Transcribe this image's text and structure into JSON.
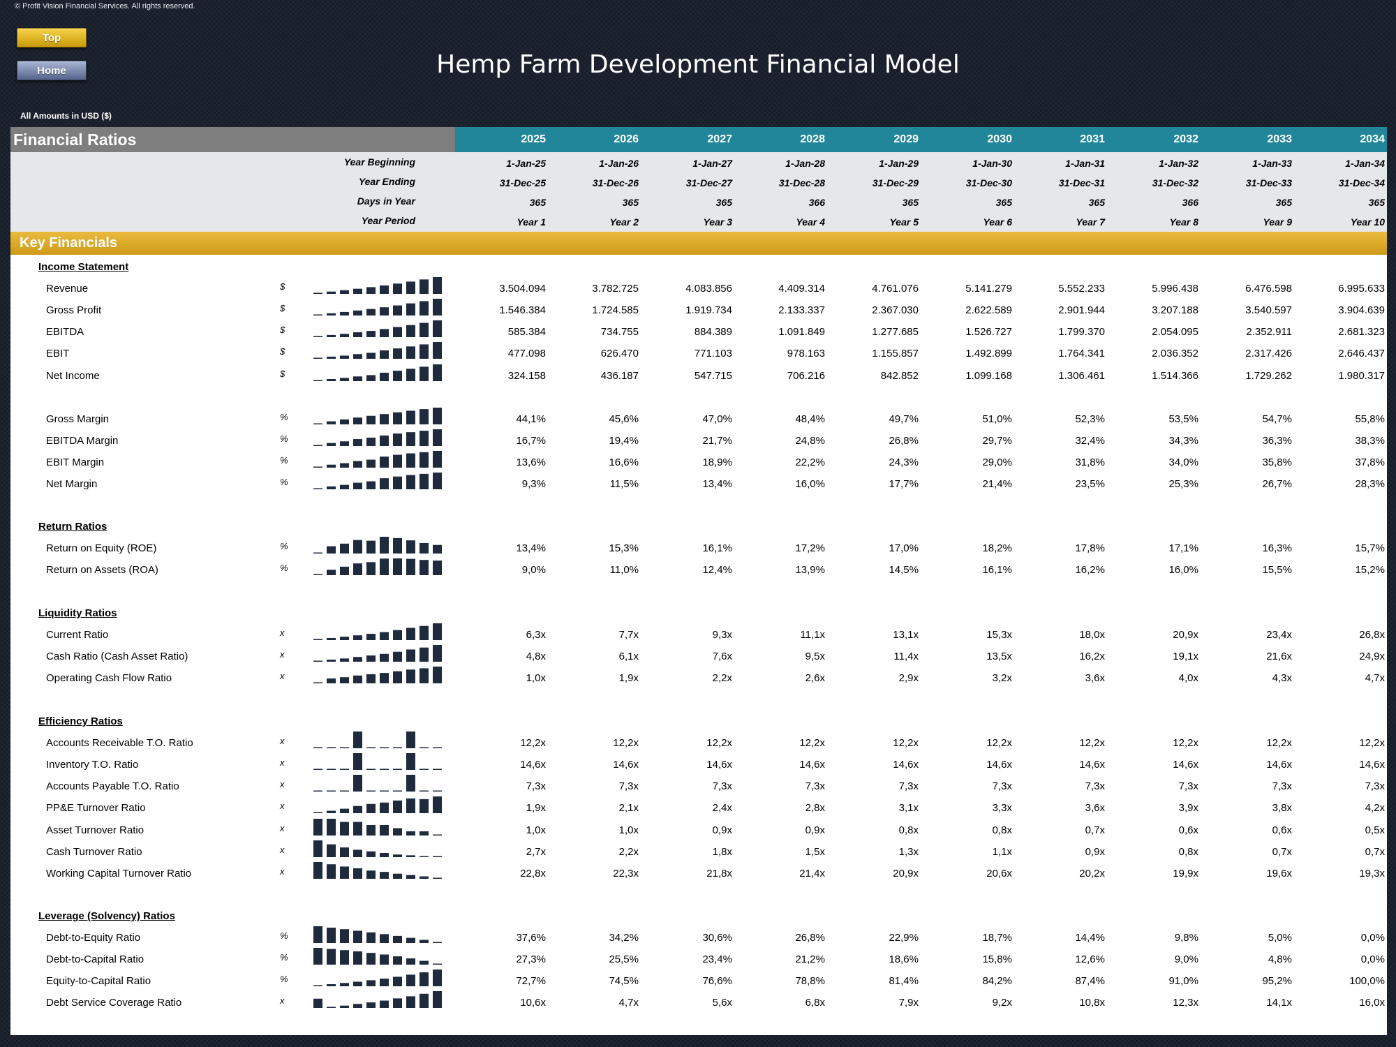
{
  "copyright": "© Profit Vision Financial Services. All rights reserved.",
  "nav": {
    "top_label": "Top",
    "home_label": "Home"
  },
  "title": "Hemp Farm Development Financial Model",
  "amounts_note": "All Amounts in  USD ($)",
  "header": {
    "section_title": "Financial Ratios",
    "years": [
      "2025",
      "2026",
      "2027",
      "2028",
      "2029",
      "2030",
      "2031",
      "2032",
      "2033",
      "2034"
    ]
  },
  "info_rows": [
    {
      "label": "Year Beginning",
      "values": [
        "1-Jan-25",
        "1-Jan-26",
        "1-Jan-27",
        "1-Jan-28",
        "1-Jan-29",
        "1-Jan-30",
        "1-Jan-31",
        "1-Jan-32",
        "1-Jan-33",
        "1-Jan-34"
      ]
    },
    {
      "label": "Year Ending",
      "values": [
        "31-Dec-25",
        "31-Dec-26",
        "31-Dec-27",
        "31-Dec-28",
        "31-Dec-29",
        "31-Dec-30",
        "31-Dec-31",
        "31-Dec-32",
        "31-Dec-33",
        "31-Dec-34"
      ]
    },
    {
      "label": "Days in Year",
      "values": [
        "365",
        "365",
        "365",
        "366",
        "365",
        "365",
        "365",
        "366",
        "365",
        "365"
      ]
    },
    {
      "label": "Year Period",
      "values": [
        "Year 1",
        "Year 2",
        "Year 3",
        "Year 4",
        "Year 5",
        "Year 6",
        "Year 7",
        "Year 8",
        "Year 9",
        "Year 10"
      ]
    }
  ],
  "key_financials_title": "Key Financials",
  "sections": [
    {
      "title": "Income Statement",
      "rows": [
        {
          "label": "Revenue",
          "unit": "$",
          "spark": [
            3504094,
            3782725,
            4083856,
            4409314,
            4761076,
            5141279,
            5552233,
            5996438,
            6476598,
            6995633
          ],
          "values": [
            "3.504.094",
            "3.782.725",
            "4.083.856",
            "4.409.314",
            "4.761.076",
            "5.141.279",
            "5.552.233",
            "5.996.438",
            "6.476.598",
            "6.995.633"
          ]
        },
        {
          "label": "Gross Profit",
          "unit": "$",
          "spark": [
            1546384,
            1724585,
            1919734,
            2133337,
            2367030,
            2622589,
            2901944,
            3207188,
            3540597,
            3904639
          ],
          "values": [
            "1.546.384",
            "1.724.585",
            "1.919.734",
            "2.133.337",
            "2.367.030",
            "2.622.589",
            "2.901.944",
            "3.207.188",
            "3.540.597",
            "3.904.639"
          ]
        },
        {
          "label": "EBITDA",
          "unit": "$",
          "spark": [
            585384,
            734755,
            884389,
            1091849,
            1277685,
            1526727,
            1799370,
            2054095,
            2352911,
            2681323
          ],
          "values": [
            "585.384",
            "734.755",
            "884.389",
            "1.091.849",
            "1.277.685",
            "1.526.727",
            "1.799.370",
            "2.054.095",
            "2.352.911",
            "2.681.323"
          ]
        },
        {
          "label": "EBIT",
          "unit": "$",
          "spark": [
            477098,
            626470,
            771103,
            978163,
            1155857,
            1492899,
            1764341,
            2036352,
            2317426,
            2646437
          ],
          "values": [
            "477.098",
            "626.470",
            "771.103",
            "978.163",
            "1.155.857",
            "1.492.899",
            "1.764.341",
            "2.036.352",
            "2.317.426",
            "2.646.437"
          ]
        },
        {
          "label": "Net Income",
          "unit": "$",
          "spark": [
            324158,
            436187,
            547715,
            706216,
            842852,
            1099168,
            1306461,
            1514366,
            1729262,
            1980317
          ],
          "values": [
            "324.158",
            "436.187",
            "547.715",
            "706.216",
            "842.852",
            "1.099.168",
            "1.306.461",
            "1.514.366",
            "1.729.262",
            "1.980.317"
          ]
        },
        {
          "gap": true
        },
        {
          "label": "Gross Margin",
          "unit": "%",
          "spark": [
            44.1,
            45.6,
            47.0,
            48.4,
            49.7,
            51.0,
            52.3,
            53.5,
            54.7,
            55.8
          ],
          "values": [
            "44,1%",
            "45,6%",
            "47,0%",
            "48,4%",
            "49,7%",
            "51,0%",
            "52,3%",
            "53,5%",
            "54,7%",
            "55,8%"
          ]
        },
        {
          "label": "EBITDA Margin",
          "unit": "%",
          "spark": [
            16.7,
            19.4,
            21.7,
            24.8,
            26.8,
            29.7,
            32.4,
            34.3,
            36.3,
            38.3
          ],
          "values": [
            "16,7%",
            "19,4%",
            "21,7%",
            "24,8%",
            "26,8%",
            "29,7%",
            "32,4%",
            "34,3%",
            "36,3%",
            "38,3%"
          ]
        },
        {
          "label": "EBIT Margin",
          "unit": "%",
          "spark": [
            13.6,
            16.6,
            18.9,
            22.2,
            24.3,
            29.0,
            31.8,
            34.0,
            35.8,
            37.8
          ],
          "values": [
            "13,6%",
            "16,6%",
            "18,9%",
            "22,2%",
            "24,3%",
            "29,0%",
            "31,8%",
            "34,0%",
            "35,8%",
            "37,8%"
          ]
        },
        {
          "label": "Net Margin",
          "unit": "%",
          "spark": [
            9.3,
            11.5,
            13.4,
            16.0,
            17.7,
            21.4,
            23.5,
            25.3,
            26.7,
            28.3
          ],
          "values": [
            "9,3%",
            "11,5%",
            "13,4%",
            "16,0%",
            "17,7%",
            "21,4%",
            "23,5%",
            "25,3%",
            "26,7%",
            "28,3%"
          ]
        }
      ]
    },
    {
      "title": "Return Ratios",
      "rows": [
        {
          "label": "Return on Equity (ROE)",
          "unit": "%",
          "spark": [
            13.4,
            15.3,
            16.1,
            17.2,
            17.0,
            18.2,
            17.8,
            17.1,
            16.3,
            15.7
          ],
          "values": [
            "13,4%",
            "15,3%",
            "16,1%",
            "17,2%",
            "17,0%",
            "18,2%",
            "17,8%",
            "17,1%",
            "16,3%",
            "15,7%"
          ]
        },
        {
          "label": "Return on Assets (ROA)",
          "unit": "%",
          "spark": [
            9.0,
            11.0,
            12.4,
            13.9,
            14.5,
            16.1,
            16.2,
            16.0,
            15.5,
            15.2
          ],
          "values": [
            "9,0%",
            "11,0%",
            "12,4%",
            "13,9%",
            "14,5%",
            "16,1%",
            "16,2%",
            "16,0%",
            "15,5%",
            "15,2%"
          ]
        }
      ]
    },
    {
      "title": "Liquidity Ratios",
      "rows": [
        {
          "label": "Current Ratio",
          "unit": "x",
          "spark": [
            6.3,
            7.7,
            9.3,
            11.1,
            13.1,
            15.3,
            18.0,
            20.9,
            23.4,
            26.8
          ],
          "values": [
            "6,3x",
            "7,7x",
            "9,3x",
            "11,1x",
            "13,1x",
            "15,3x",
            "18,0x",
            "20,9x",
            "23,4x",
            "26,8x"
          ]
        },
        {
          "label": "Cash Ratio (Cash Asset Ratio)",
          "unit": "x",
          "spark": [
            4.8,
            6.1,
            7.6,
            9.5,
            11.4,
            13.5,
            16.2,
            19.1,
            21.6,
            24.9
          ],
          "values": [
            "4,8x",
            "6,1x",
            "7,6x",
            "9,5x",
            "11,4x",
            "13,5x",
            "16,2x",
            "19,1x",
            "21,6x",
            "24,9x"
          ]
        },
        {
          "label": "Operating Cash Flow Ratio",
          "unit": "x",
          "spark": [
            1.0,
            1.9,
            2.2,
            2.6,
            2.9,
            3.2,
            3.6,
            4.0,
            4.3,
            4.7
          ],
          "values": [
            "1,0x",
            "1,9x",
            "2,2x",
            "2,6x",
            "2,9x",
            "3,2x",
            "3,6x",
            "4,0x",
            "4,3x",
            "4,7x"
          ]
        }
      ]
    },
    {
      "title": "Efficiency Ratios",
      "rows": [
        {
          "label": "Accounts Receivable T.O. Ratio",
          "unit": "x",
          "spark": [
            12.2,
            12.2,
            12.2,
            12.25,
            12.2,
            12.2,
            12.2,
            12.25,
            12.2,
            12.2
          ],
          "values": [
            "12,2x",
            "12,2x",
            "12,2x",
            "12,2x",
            "12,2x",
            "12,2x",
            "12,2x",
            "12,2x",
            "12,2x",
            "12,2x"
          ]
        },
        {
          "label": "Inventory T.O. Ratio",
          "unit": "x",
          "spark": [
            14.6,
            14.6,
            14.6,
            14.65,
            14.6,
            14.6,
            14.6,
            14.65,
            14.6,
            14.6
          ],
          "values": [
            "14,6x",
            "14,6x",
            "14,6x",
            "14,6x",
            "14,6x",
            "14,6x",
            "14,6x",
            "14,6x",
            "14,6x",
            "14,6x"
          ]
        },
        {
          "label": "Accounts Payable T.O. Ratio",
          "unit": "x",
          "spark": [
            7.3,
            7.3,
            7.3,
            7.35,
            7.3,
            7.3,
            7.3,
            7.35,
            7.3,
            7.3
          ],
          "values": [
            "7,3x",
            "7,3x",
            "7,3x",
            "7,3x",
            "7,3x",
            "7,3x",
            "7,3x",
            "7,3x",
            "7,3x",
            "7,3x"
          ]
        },
        {
          "label": "PP&E Turnover Ratio",
          "unit": "x",
          "spark": [
            1.9,
            2.1,
            2.4,
            2.8,
            3.1,
            3.3,
            3.6,
            3.9,
            3.8,
            4.2
          ],
          "values": [
            "1,9x",
            "2,1x",
            "2,4x",
            "2,8x",
            "3,1x",
            "3,3x",
            "3,6x",
            "3,9x",
            "3,8x",
            "4,2x"
          ]
        },
        {
          "label": "Asset Turnover Ratio",
          "unit": "x",
          "spark": [
            1.0,
            1.0,
            0.9,
            0.9,
            0.8,
            0.8,
            0.7,
            0.6,
            0.6,
            0.5
          ],
          "values": [
            "1,0x",
            "1,0x",
            "0,9x",
            "0,9x",
            "0,8x",
            "0,8x",
            "0,7x",
            "0,6x",
            "0,6x",
            "0,5x"
          ]
        },
        {
          "label": "Cash Turnover Ratio",
          "unit": "x",
          "spark": [
            2.7,
            2.2,
            1.8,
            1.5,
            1.3,
            1.1,
            0.9,
            0.8,
            0.7,
            0.7
          ],
          "values": [
            "2,7x",
            "2,2x",
            "1,8x",
            "1,5x",
            "1,3x",
            "1,1x",
            "0,9x",
            "0,8x",
            "0,7x",
            "0,7x"
          ]
        },
        {
          "label": "Working Capital Turnover Ratio",
          "unit": "x",
          "spark": [
            22.8,
            22.3,
            21.8,
            21.4,
            20.9,
            20.6,
            20.2,
            19.9,
            19.6,
            19.3
          ],
          "values": [
            "22,8x",
            "22,3x",
            "21,8x",
            "21,4x",
            "20,9x",
            "20,6x",
            "20,2x",
            "19,9x",
            "19,6x",
            "19,3x"
          ]
        }
      ]
    },
    {
      "title": "Leverage (Solvency) Ratios",
      "rows": [
        {
          "label": "Debt-to-Equity Ratio",
          "unit": "%",
          "spark": [
            37.6,
            34.2,
            30.6,
            26.8,
            22.9,
            18.7,
            14.4,
            9.8,
            5.0,
            0.0
          ],
          "values": [
            "37,6%",
            "34,2%",
            "30,6%",
            "26,8%",
            "22,9%",
            "18,7%",
            "14,4%",
            "9,8%",
            "5,0%",
            "0,0%"
          ]
        },
        {
          "label": "Debt-to-Capital Ratio",
          "unit": "%",
          "spark": [
            27.3,
            25.5,
            23.4,
            21.2,
            18.6,
            15.8,
            12.6,
            9.0,
            4.8,
            0.0
          ],
          "values": [
            "27,3%",
            "25,5%",
            "23,4%",
            "21,2%",
            "18,6%",
            "15,8%",
            "12,6%",
            "9,0%",
            "4,8%",
            "0,0%"
          ]
        },
        {
          "label": "Equity-to-Capital Ratio",
          "unit": "%",
          "spark": [
            72.7,
            74.5,
            76.6,
            78.8,
            81.4,
            84.2,
            87.4,
            91.0,
            95.2,
            100.0
          ],
          "values": [
            "72,7%",
            "74,5%",
            "76,6%",
            "78,8%",
            "81,4%",
            "84,2%",
            "87,4%",
            "91,0%",
            "95,2%",
            "100,0%"
          ]
        },
        {
          "label": "Debt Service Coverage Ratio",
          "unit": "x",
          "spark": [
            10.6,
            4.7,
            5.6,
            6.8,
            7.9,
            9.2,
            10.8,
            12.3,
            14.1,
            16.0
          ],
          "values": [
            "10,6x",
            "4,7x",
            "5,6x",
            "6,8x",
            "7,9x",
            "9,2x",
            "10,8x",
            "12,3x",
            "14,1x",
            "16,0x"
          ]
        }
      ]
    }
  ],
  "colors": {
    "spark_bar": "#1f2a3c",
    "teal": "#21869a",
    "gold": "#d9a827",
    "grey": "#7e7e7e"
  }
}
